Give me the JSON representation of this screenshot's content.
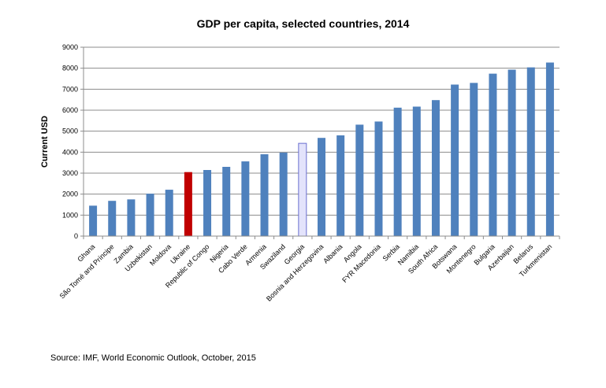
{
  "chart_data": {
    "type": "bar",
    "title": "GDP per capita, selected countries, 2014",
    "ylabel": "Current USD",
    "xlabel": "",
    "ylim": [
      0,
      9000
    ],
    "yticks": [
      0,
      1000,
      2000,
      3000,
      4000,
      5000,
      6000,
      7000,
      8000,
      9000
    ],
    "grid": true,
    "legend": "none",
    "categories": [
      "Ghana",
      "São Tomé and Príncipe",
      "Zambia",
      "Uzbekistan",
      "Moldova",
      "Ukraine",
      "Republic of Congo",
      "Nigeria",
      "Cabo Verde",
      "Armenia",
      "Swaziland",
      "Georgia",
      "Bosnia and Herzegovina",
      "Albania",
      "Angola",
      "FYR Macedonia",
      "Serbia",
      "Namibia",
      "South Africa",
      "Botswana",
      "Montenegro",
      "Bulgaria",
      "Azerbaijan",
      "Belarus",
      "Turkmenistan"
    ],
    "values": [
      1450,
      1680,
      1750,
      2020,
      2210,
      3050,
      3150,
      3300,
      3560,
      3900,
      3980,
      4420,
      4680,
      4800,
      5310,
      5460,
      6120,
      6170,
      6480,
      7220,
      7300,
      7740,
      7930,
      8040,
      8270
    ],
    "colors": {
      "default": "#4f81bd",
      "highlight_ukraine": "#c00000",
      "highlight_georgia": "#e3e3fb",
      "highlight_georgia_border": "#6a6fcf",
      "grid": "#8c8c8c"
    },
    "highlights": {
      "Ukraine": "highlight_ukraine",
      "Georgia": "highlight_georgia"
    }
  },
  "source": "Source: IMF,  World Economic Outlook, October, 2015"
}
